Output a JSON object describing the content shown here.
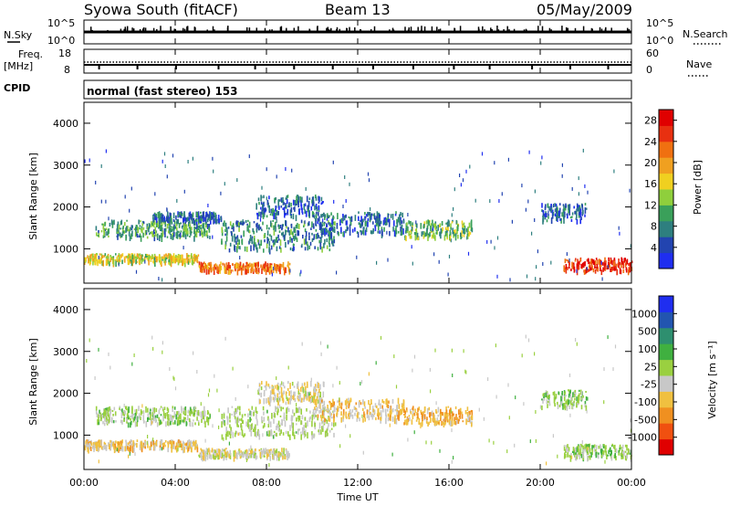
{
  "header": {
    "station": "Syowa South (fitACF)",
    "beam": "Beam 13",
    "date": "05/May/2009"
  },
  "left_labels": {
    "nsky": "N.Sky",
    "freq_line1": "Freq.",
    "freq_line2": "[MHz]",
    "cpid": "CPID",
    "nsky_top": "10^5",
    "nsky_bot": "10^0",
    "freq_top": "18",
    "freq_bot": "8"
  },
  "right_labels": {
    "nsearch": "N.Search",
    "nave": "Nave",
    "nsearch_top": "10^5",
    "nsearch_bot": "10^0",
    "nave_top": "60",
    "nave_bot": "0"
  },
  "cpid_text": "normal (fast stereo) 153",
  "x_axis": {
    "label": "Time UT",
    "ticks": [
      "00:00",
      "04:00",
      "08:00",
      "12:00",
      "16:00",
      "20:00",
      "00:00"
    ]
  },
  "y_axis": {
    "label": "Slant Range [km]",
    "ticks": [
      "1000",
      "2000",
      "3000",
      "4000"
    ]
  },
  "colors": {
    "power_scale": [
      "#1f2ef0",
      "#2244b0",
      "#2e7f7f",
      "#3aa05a",
      "#8fcf3c",
      "#f0d020",
      "#f0a020",
      "#f07010",
      "#e83010",
      "#e00000"
    ],
    "velocity_scale": [
      "#e00000",
      "#f05010",
      "#f09020",
      "#f0c040",
      "#c8c8c8",
      "#9ad040",
      "#40b040",
      "#2e8f6f",
      "#2255b0",
      "#1f2ef0"
    ]
  },
  "chart_data": [
    {
      "type": "heatmap",
      "name": "power-panel",
      "xlabel": "Time UT",
      "ylabel": "Slant Range [km]",
      "x_range_hours": [
        0,
        24
      ],
      "ylim": [
        180,
        4500
      ],
      "colorbar": {
        "label": "Power [dB]",
        "ticks": [
          "4",
          "8",
          "12",
          "16",
          "20",
          "24",
          "28"
        ],
        "range": [
          0,
          30
        ]
      },
      "bands": [
        {
          "t0": 0.0,
          "t1": 5.0,
          "r0": 700,
          "r1": 900,
          "v": 16
        },
        {
          "t0": 0.5,
          "t1": 5.5,
          "r0": 1300,
          "r1": 1700,
          "v": 10
        },
        {
          "t0": 3.0,
          "t1": 6.0,
          "r0": 1700,
          "r1": 1900,
          "v": 6
        },
        {
          "t0": 5.0,
          "t1": 9.0,
          "r0": 500,
          "r1": 700,
          "v": 22
        },
        {
          "t0": 6.0,
          "t1": 11.0,
          "r0": 1000,
          "r1": 1700,
          "v": 8
        },
        {
          "t0": 7.5,
          "t1": 10.5,
          "r0": 1800,
          "r1": 2300,
          "v": 6
        },
        {
          "t0": 10.0,
          "t1": 14.0,
          "r0": 1400,
          "r1": 1900,
          "v": 6
        },
        {
          "t0": 14.0,
          "t1": 17.0,
          "r0": 1300,
          "r1": 1700,
          "v": 12
        },
        {
          "t0": 20.0,
          "t1": 22.0,
          "r0": 1700,
          "r1": 2100,
          "v": 6
        },
        {
          "t0": 21.0,
          "t1": 24.0,
          "r0": 500,
          "r1": 800,
          "v": 26
        }
      ]
    },
    {
      "type": "heatmap",
      "name": "velocity-panel",
      "xlabel": "Time UT",
      "ylabel": "Slant Range [km]",
      "x_range_hours": [
        0,
        24
      ],
      "ylim": [
        180,
        4500
      ],
      "colorbar": {
        "label": "Velocity [m s⁻¹]",
        "ticks": [
          "1000",
          "500",
          "100",
          "25",
          "-25",
          "-100",
          "-500",
          "-1000"
        ],
        "range": [
          -1200,
          1200
        ]
      },
      "bands": [
        {
          "t0": 0.0,
          "t1": 5.0,
          "r0": 700,
          "r1": 900,
          "v": -300
        },
        {
          "t0": 0.5,
          "t1": 5.5,
          "r0": 1300,
          "r1": 1700,
          "v": 80
        },
        {
          "t0": 5.0,
          "t1": 9.0,
          "r0": 500,
          "r1": 700,
          "v": -150
        },
        {
          "t0": 6.0,
          "t1": 11.0,
          "r0": 1000,
          "r1": 1700,
          "v": 0
        },
        {
          "t0": 7.5,
          "t1": 10.5,
          "r0": 1800,
          "r1": 2300,
          "v": -200
        },
        {
          "t0": 10.0,
          "t1": 14.0,
          "r0": 1400,
          "r1": 1900,
          "v": -300
        },
        {
          "t0": 14.0,
          "t1": 17.0,
          "r0": 1300,
          "r1": 1700,
          "v": -400
        },
        {
          "t0": 20.0,
          "t1": 22.0,
          "r0": 1700,
          "r1": 2100,
          "v": 120
        },
        {
          "t0": 21.0,
          "t1": 24.0,
          "r0": 500,
          "r1": 800,
          "v": 150
        }
      ]
    }
  ]
}
